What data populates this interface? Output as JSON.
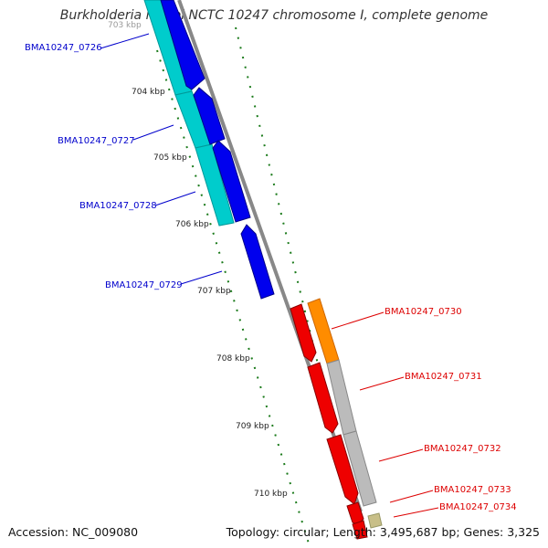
{
  "title": "Burkholderia mallei NCTC 10247 chromosome I, complete genome",
  "footer": {
    "accession": "Accession: NC_009080",
    "stats": "Topology: circular; Length: 3,495,687 bp; Genes: 3,325"
  },
  "scale_labels": [
    "703 kbp",
    "704 kbp",
    "705 kbp",
    "706 kbp",
    "707 kbp",
    "708 kbp",
    "709 kbp",
    "710 kbp"
  ],
  "genes": [
    {
      "id": "BMA10247_0726",
      "strand": "-",
      "color": "#0000cc"
    },
    {
      "id": "BMA10247_0727",
      "strand": "-",
      "color": "#0000cc"
    },
    {
      "id": "BMA10247_0728",
      "strand": "-",
      "color": "#0000cc"
    },
    {
      "id": "BMA10247_0729",
      "strand": "-",
      "color": "#0000cc"
    },
    {
      "id": "BMA10247_0730",
      "strand": "+",
      "color": "#dd0000"
    },
    {
      "id": "BMA10247_0731",
      "strand": "+",
      "color": "#dd0000"
    },
    {
      "id": "BMA10247_0732",
      "strand": "+",
      "color": "#dd0000"
    },
    {
      "id": "BMA10247_0733",
      "strand": "+",
      "color": "#dd0000"
    },
    {
      "id": "BMA10247_0734",
      "strand": "+",
      "color": "#dd0000"
    }
  ],
  "colors": {
    "reverse_cds": "#0000ee",
    "forward_cds": "#ee0000",
    "reverse_rna": "#00cccc",
    "forward_feature_orange": "#ff8c00",
    "forward_feature_grey": "#bbbbbb",
    "forward_feature_tan": "#c8bf88",
    "backbone": "#888888",
    "ticks": "#1a7a1a"
  }
}
